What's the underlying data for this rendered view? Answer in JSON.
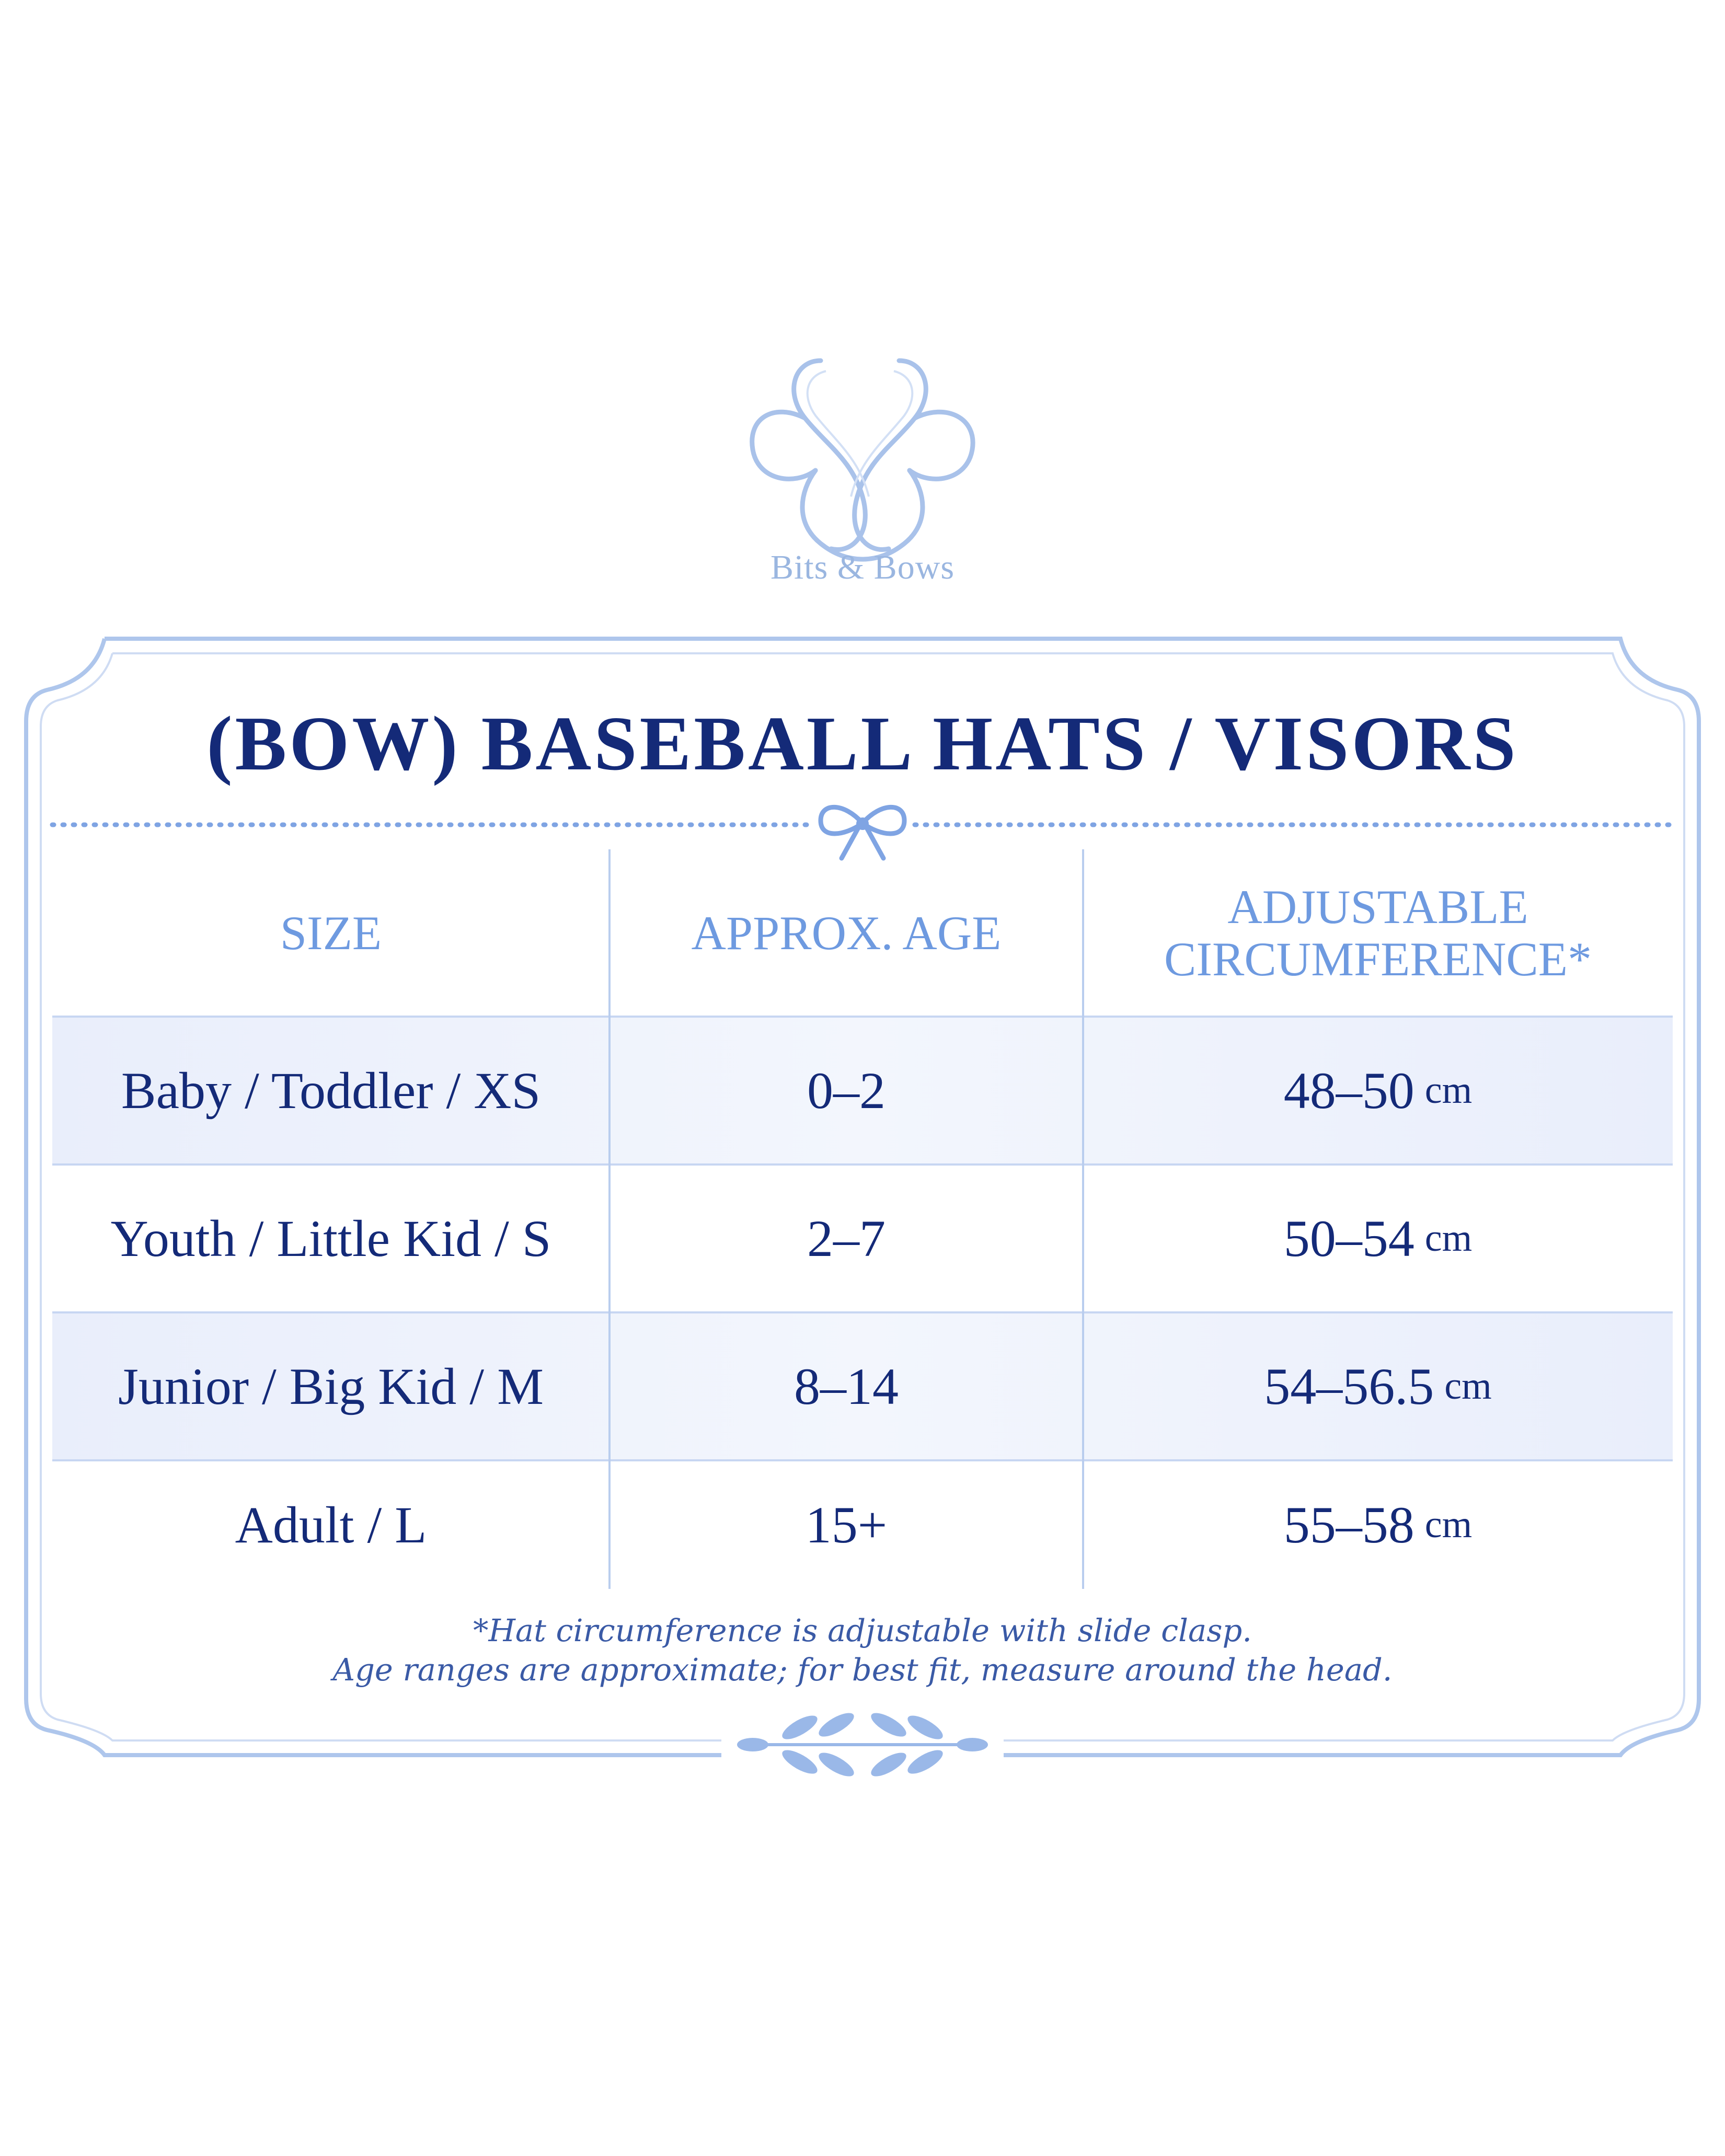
{
  "brand": {
    "name": "Bits & Bows",
    "logo_icon": "bb-monogram-icon"
  },
  "title": {
    "part1": "(BOW)",
    "part2": "BASEBALL HATS / VISORS"
  },
  "colors": {
    "navy": "#142a78",
    "accent_blue": "#6e9ae0",
    "light_blue": "#a9c2ea",
    "row_shade": "#eef2fc"
  },
  "table": {
    "headers": {
      "size": "SIZE",
      "age": "APPROX. AGE",
      "circ_line1": "ADJUSTABLE",
      "circ_line2": "CIRCUMFERENCE*"
    },
    "rows": [
      {
        "size": "Baby / Toddler / XS",
        "age": "0–2",
        "circ": "48–50",
        "unit": "cm"
      },
      {
        "size": "Youth / Little Kid / S",
        "age": "2–7",
        "circ": "50–54",
        "unit": "cm"
      },
      {
        "size": "Junior / Big Kid / M",
        "age": "8–14",
        "circ": "54–56.5",
        "unit": "cm"
      },
      {
        "size": "Adult / L",
        "age": "15+",
        "circ": "55–58",
        "unit": "cm"
      }
    ]
  },
  "footnote": {
    "line1": "*Hat circumference is adjustable with slide clasp.",
    "line2": "Age ranges are approximate; for best fit, measure around the head."
  },
  "ornaments": {
    "divider_icon": "bow-icon",
    "bottom_icon": "laurel-sprig-icon"
  }
}
